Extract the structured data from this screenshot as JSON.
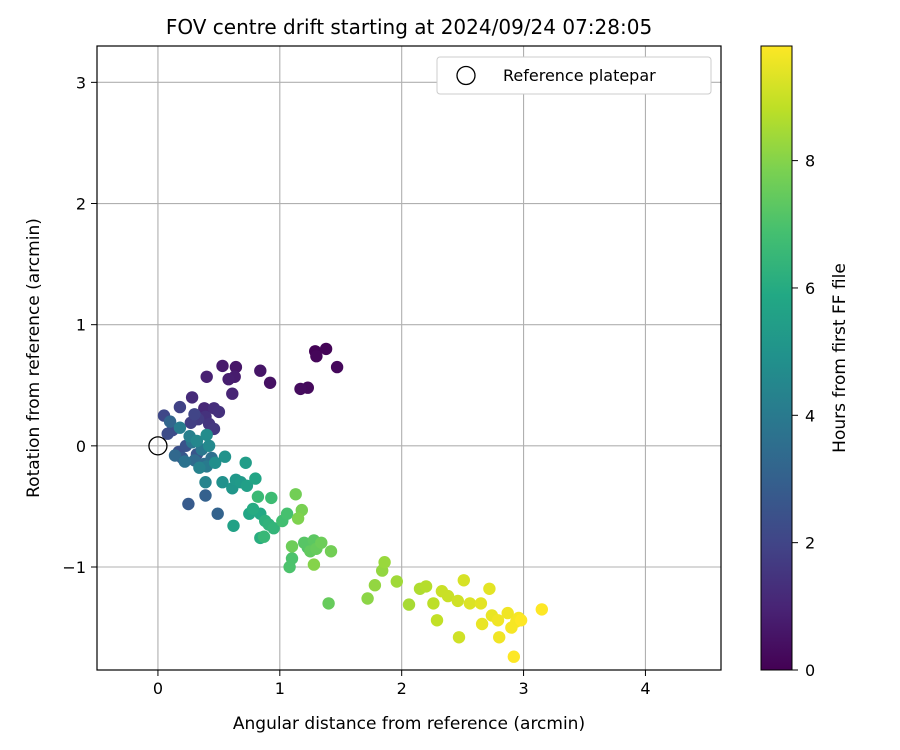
{
  "chart_data": {
    "type": "scatter",
    "title": "FOV centre drift starting at 2024/09/24 07:28:05",
    "xlabel": "Angular distance from reference (arcmin)",
    "ylabel": "Rotation from reference (arcmin)",
    "xlim": [
      -0.5,
      4.62
    ],
    "ylim": [
      -1.85,
      3.3
    ],
    "xticks": [
      0,
      1,
      2,
      3,
      4
    ],
    "yticks": [
      -1,
      0,
      1,
      2,
      3
    ],
    "xtick_labels": [
      "0",
      "1",
      "2",
      "3",
      "4"
    ],
    "ytick_labels": [
      "−1",
      "0",
      "1",
      "2",
      "3"
    ],
    "grid": true,
    "legend": {
      "placement": "upper-right",
      "entries": [
        {
          "label": "Reference platepar",
          "marker": "open-circle",
          "x": 0,
          "y": 0
        }
      ]
    },
    "colorbar": {
      "label": "Hours from first FF file",
      "colormap": "viridis",
      "range": [
        0,
        9.8
      ],
      "ticks": [
        0,
        2,
        4,
        6,
        8
      ],
      "tick_labels": [
        "0",
        "2",
        "4",
        "6",
        "8"
      ]
    },
    "points": [
      [
        1.29,
        0.78,
        0.05
      ],
      [
        1.38,
        0.8,
        0.1
      ],
      [
        1.3,
        0.74,
        0.15
      ],
      [
        1.47,
        0.65,
        0.2
      ],
      [
        1.23,
        0.48,
        0.25
      ],
      [
        1.17,
        0.47,
        0.3
      ],
      [
        0.92,
        0.52,
        0.45
      ],
      [
        0.84,
        0.62,
        0.55
      ],
      [
        0.64,
        0.65,
        0.6
      ],
      [
        0.53,
        0.66,
        0.7
      ],
      [
        0.63,
        0.57,
        0.75
      ],
      [
        0.58,
        0.55,
        0.8
      ],
      [
        0.4,
        0.57,
        0.9
      ],
      [
        0.61,
        0.43,
        1.0
      ],
      [
        0.38,
        0.31,
        1.1
      ],
      [
        0.28,
        0.4,
        1.2
      ],
      [
        0.46,
        0.31,
        1.3
      ],
      [
        0.5,
        0.28,
        1.35
      ],
      [
        0.39,
        0.24,
        1.4
      ],
      [
        0.42,
        0.18,
        1.5
      ],
      [
        0.46,
        0.14,
        1.6
      ],
      [
        0.33,
        0.22,
        1.7
      ],
      [
        0.27,
        0.19,
        1.8
      ],
      [
        0.18,
        0.32,
        1.9
      ],
      [
        0.3,
        0.26,
        2.0
      ],
      [
        0.05,
        0.25,
        2.1
      ],
      [
        0.12,
        0.13,
        2.2
      ],
      [
        0.08,
        0.1,
        2.3
      ],
      [
        0.17,
        -0.05,
        2.4
      ],
      [
        0.23,
        0.0,
        2.5
      ],
      [
        0.32,
        -0.07,
        2.6
      ],
      [
        0.2,
        -0.1,
        2.7
      ],
      [
        0.25,
        -0.48,
        2.8
      ],
      [
        0.39,
        -0.41,
        3.0
      ],
      [
        0.49,
        -0.56,
        3.1
      ],
      [
        0.1,
        0.2,
        3.2
      ],
      [
        0.14,
        -0.08,
        3.3
      ],
      [
        0.3,
        -0.12,
        3.4
      ],
      [
        0.38,
        -0.15,
        3.5
      ],
      [
        0.44,
        -0.1,
        3.6
      ],
      [
        0.22,
        -0.13,
        3.7
      ],
      [
        0.28,
        0.03,
        3.8
      ],
      [
        0.36,
        -0.03,
        3.9
      ],
      [
        0.4,
        -0.17,
        4.0
      ],
      [
        0.18,
        0.15,
        4.1
      ],
      [
        0.26,
        0.08,
        4.2
      ],
      [
        0.34,
        -0.18,
        4.3
      ],
      [
        0.39,
        -0.3,
        4.4
      ],
      [
        0.32,
        0.04,
        4.5
      ],
      [
        0.42,
        0.0,
        4.6
      ],
      [
        0.4,
        0.09,
        4.7
      ],
      [
        0.47,
        -0.14,
        4.8
      ],
      [
        0.53,
        -0.3,
        4.9
      ],
      [
        0.55,
        -0.09,
        5.0
      ],
      [
        0.61,
        -0.35,
        5.1
      ],
      [
        0.64,
        -0.28,
        5.2
      ],
      [
        0.68,
        -0.3,
        5.3
      ],
      [
        0.72,
        -0.14,
        5.4
      ],
      [
        0.73,
        -0.33,
        5.5
      ],
      [
        0.62,
        -0.66,
        5.6
      ],
      [
        0.8,
        -0.27,
        5.7
      ],
      [
        0.75,
        -0.56,
        5.8
      ],
      [
        0.84,
        -0.56,
        5.9
      ],
      [
        0.78,
        -0.52,
        6.0
      ],
      [
        0.84,
        -0.76,
        6.1
      ],
      [
        0.88,
        -0.62,
        6.2
      ],
      [
        0.91,
        -0.65,
        6.3
      ],
      [
        0.95,
        -0.68,
        6.4
      ],
      [
        0.87,
        -0.75,
        6.5
      ],
      [
        0.82,
        -0.42,
        6.6
      ],
      [
        0.93,
        -0.43,
        6.7
      ],
      [
        1.02,
        -0.62,
        6.8
      ],
      [
        1.06,
        -0.56,
        6.9
      ],
      [
        1.1,
        -0.93,
        7.0
      ],
      [
        1.08,
        -1.0,
        7.0
      ],
      [
        1.23,
        -0.84,
        7.1
      ],
      [
        1.2,
        -0.8,
        7.2
      ],
      [
        1.28,
        -0.78,
        7.3
      ],
      [
        1.25,
        -0.87,
        7.4
      ],
      [
        1.3,
        -0.85,
        7.5
      ],
      [
        1.34,
        -0.8,
        7.6
      ],
      [
        1.42,
        -0.87,
        7.7
      ],
      [
        1.4,
        -1.3,
        7.5
      ],
      [
        1.1,
        -0.83,
        7.6
      ],
      [
        1.13,
        -0.4,
        7.7
      ],
      [
        1.18,
        -0.53,
        7.8
      ],
      [
        1.15,
        -0.6,
        7.9
      ],
      [
        1.28,
        -0.98,
        8.0
      ],
      [
        1.72,
        -1.26,
        8.1
      ],
      [
        1.78,
        -1.15,
        8.2
      ],
      [
        1.84,
        -1.03,
        8.2
      ],
      [
        1.86,
        -0.96,
        8.3
      ],
      [
        1.96,
        -1.12,
        8.4
      ],
      [
        2.06,
        -1.31,
        8.5
      ],
      [
        2.15,
        -1.18,
        8.6
      ],
      [
        2.2,
        -1.16,
        8.7
      ],
      [
        2.26,
        -1.3,
        8.8
      ],
      [
        2.29,
        -1.44,
        8.9
      ],
      [
        2.33,
        -1.2,
        9.0
      ],
      [
        2.38,
        -1.24,
        9.0
      ],
      [
        2.46,
        -1.28,
        9.1
      ],
      [
        2.47,
        -1.58,
        9.1
      ],
      [
        2.51,
        -1.11,
        9.2
      ],
      [
        2.56,
        -1.3,
        9.3
      ],
      [
        2.65,
        -1.3,
        9.4
      ],
      [
        2.72,
        -1.18,
        9.4
      ],
      [
        2.66,
        -1.47,
        9.5
      ],
      [
        2.74,
        -1.4,
        9.5
      ],
      [
        2.79,
        -1.44,
        9.6
      ],
      [
        2.8,
        -1.58,
        9.6
      ],
      [
        2.87,
        -1.38,
        9.6
      ],
      [
        2.9,
        -1.5,
        9.7
      ],
      [
        2.94,
        -1.45,
        9.7
      ],
      [
        2.96,
        -1.42,
        9.7
      ],
      [
        2.98,
        -1.44,
        9.8
      ],
      [
        2.92,
        -1.74,
        9.8
      ],
      [
        3.15,
        -1.35,
        9.8
      ]
    ]
  }
}
